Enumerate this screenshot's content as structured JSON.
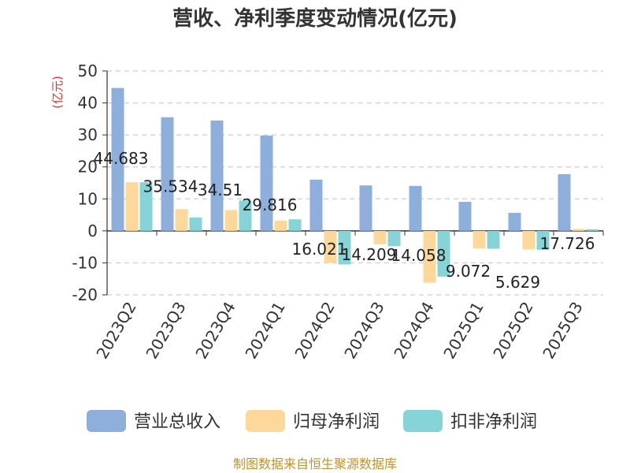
{
  "chart_data": {
    "type": "bar",
    "title": "营收、净利季度变动情况(亿元)",
    "ylabel": "(亿元)",
    "xlabel": "",
    "ylim": [
      -20,
      50
    ],
    "yticks": [
      50,
      40,
      30,
      20,
      10,
      0,
      -10,
      -20
    ],
    "categories": [
      "2023Q2",
      "2023Q3",
      "2023Q4",
      "2024Q1",
      "2024Q2",
      "2024Q3",
      "2024Q4",
      "2025Q1",
      "2025Q2",
      "2025Q3"
    ],
    "series": [
      {
        "name": "营业总收入",
        "color": "#8eaedb",
        "values": [
          44.683,
          35.534,
          34.51,
          29.816,
          16.021,
          14.209,
          14.058,
          9.072,
          5.629,
          17.726
        ]
      },
      {
        "name": "归母净利润",
        "color": "#fdd89a",
        "values": [
          15.2,
          6.8,
          6.5,
          3.2,
          -10.0,
          -4.2,
          -16.2,
          -5.5,
          -5.8,
          0.6
        ]
      },
      {
        "name": "扣非净利润",
        "color": "#86d3d8",
        "values": [
          15.2,
          4.2,
          9.5,
          3.6,
          -10.5,
          -4.8,
          -14.3,
          -5.6,
          -5.9,
          0.5
        ]
      }
    ],
    "data_labels": [
      "44.683",
      "35.534",
      "34.51",
      "29.816",
      "16.021",
      "14.209",
      "14.058",
      "9.072",
      "5.629",
      "17.726"
    ],
    "grid": true,
    "legend_position": "bottom"
  },
  "source": "制图数据来自恒生聚源数据库"
}
